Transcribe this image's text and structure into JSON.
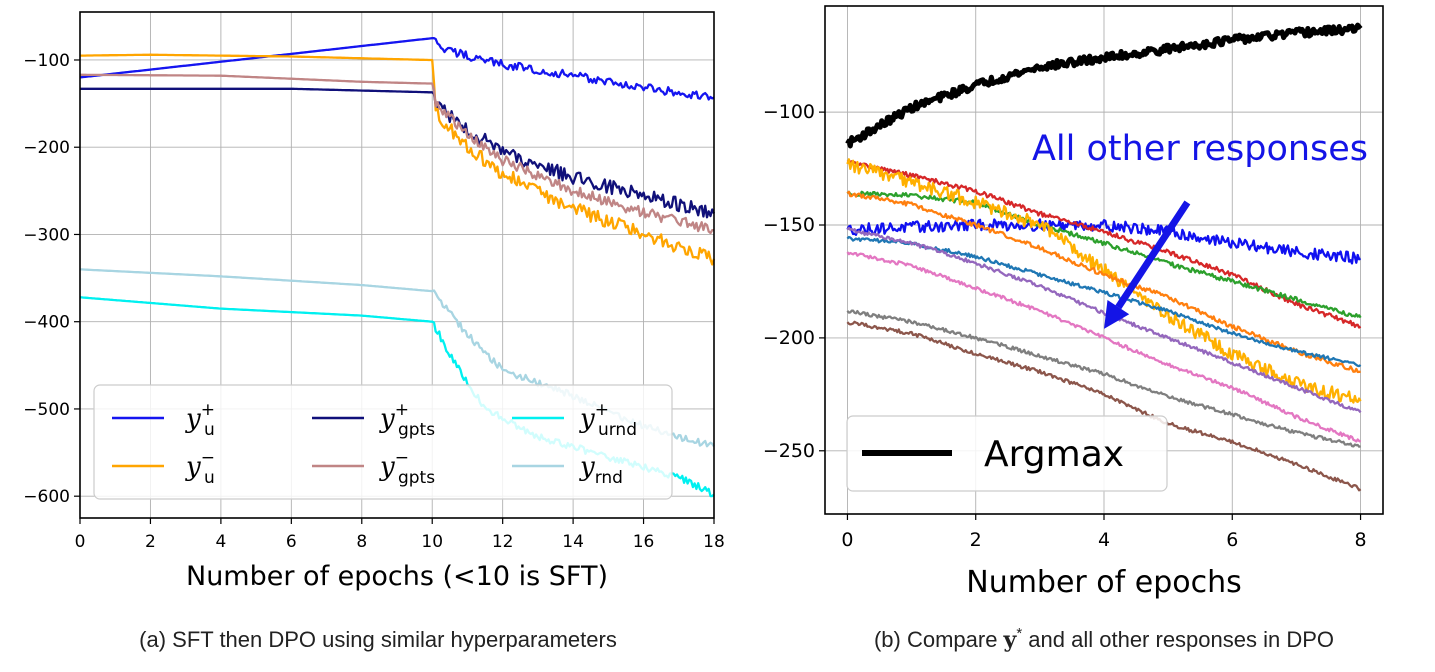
{
  "chart_data": [
    {
      "type": "line",
      "panel": "a",
      "caption": "(a) SFT then DPO using similar hyperparameters",
      "xlabel": "Number of epochs (<10 is SFT)",
      "ylabel": "",
      "xlim": [
        0,
        18
      ],
      "ylim": [
        -625,
        -45
      ],
      "xticks": [
        0,
        2,
        4,
        6,
        8,
        10,
        12,
        14,
        16,
        18
      ],
      "yticks": [
        -100,
        -200,
        -300,
        -400,
        -500,
        -600
      ],
      "grid": true,
      "legend_position": "lower-center",
      "series": [
        {
          "key": "yu_plus",
          "label_main": "y",
          "label_sub": "u",
          "label_sup": "+",
          "color": "#1515f0",
          "points": [
            [
              0,
              -120
            ],
            [
              10,
              -75
            ],
            [
              10.3,
              -88
            ],
            [
              12,
              -105
            ],
            [
              14,
              -118
            ],
            [
              16,
              -132
            ],
            [
              18,
              -143
            ]
          ],
          "noise": 5
        },
        {
          "key": "yu_minus",
          "label_main": "y",
          "label_sub": "u",
          "label_sup": "−",
          "color": "#ffa500",
          "points": [
            [
              0,
              -95
            ],
            [
              2,
              -94
            ],
            [
              6,
              -96
            ],
            [
              9.9,
              -100
            ],
            [
              10,
              -100
            ],
            [
              10.1,
              -160
            ],
            [
              11,
              -200
            ],
            [
              12,
              -230
            ],
            [
              14,
              -270
            ],
            [
              16,
              -300
            ],
            [
              18,
              -328
            ]
          ],
          "noise": 8
        },
        {
          "key": "ygpts_plus",
          "label_main": "y",
          "label_sub": "gpts",
          "label_sup": "+",
          "color": "#10107a",
          "points": [
            [
              0,
              -133
            ],
            [
              6,
              -133
            ],
            [
              9.9,
              -137
            ],
            [
              10,
              -137
            ],
            [
              10.1,
              -150
            ],
            [
              11,
              -180
            ],
            [
              12,
              -205
            ],
            [
              14,
              -235
            ],
            [
              16,
              -255
            ],
            [
              18,
              -276
            ]
          ],
          "noise": 8
        },
        {
          "key": "ygpts_minus",
          "label_main": "y",
          "label_sub": "gpts",
          "label_sup": "−",
          "color": "#c08585",
          "points": [
            [
              0,
              -117
            ],
            [
              4,
              -118
            ],
            [
              8,
              -125
            ],
            [
              9.9,
              -127
            ],
            [
              10,
              -127
            ],
            [
              10.1,
              -150
            ],
            [
              11,
              -185
            ],
            [
              12,
              -215
            ],
            [
              14,
              -250
            ],
            [
              16,
              -275
            ],
            [
              18,
              -295
            ]
          ],
          "noise": 6
        },
        {
          "key": "yurnd_plus",
          "label_main": "y",
          "label_sub": "urnd",
          "label_sup": "+",
          "color": "#00f0f0",
          "points": [
            [
              0,
              -372
            ],
            [
              4,
              -385
            ],
            [
              8,
              -393
            ],
            [
              10,
              -400
            ],
            [
              10.6,
              -445
            ],
            [
              11.5,
              -500
            ],
            [
              13,
              -532
            ],
            [
              15,
              -555
            ],
            [
              17,
              -578
            ],
            [
              18,
              -598
            ]
          ],
          "noise": 4
        },
        {
          "key": "yrnd",
          "label_main": "y",
          "label_sub": "rnd",
          "label_sup": "",
          "color": "#a8d5e2",
          "points": [
            [
              0,
              -340
            ],
            [
              4,
              -348
            ],
            [
              8,
              -358
            ],
            [
              10,
              -365
            ],
            [
              11,
              -415
            ],
            [
              12,
              -455
            ],
            [
              14,
              -485
            ],
            [
              16,
              -520
            ],
            [
              18,
              -543
            ]
          ],
          "noise": 4
        }
      ]
    },
    {
      "type": "line",
      "panel": "b",
      "caption": "(b) Compare y* and all other responses in DPO",
      "caption_parts": {
        "before": "(b) Compare ",
        "symbol": "y",
        "sup": "*",
        "after": " and all other responses in DPO"
      },
      "xlabel": "Number of epochs",
      "ylabel": "",
      "xlim": [
        -0.35,
        8.35
      ],
      "ylim": [
        -278,
        -53
      ],
      "xticks": [
        0,
        2,
        4,
        6,
        8
      ],
      "yticks": [
        -100,
        -150,
        -200,
        -250
      ],
      "grid": true,
      "annotation": {
        "text": "All other responses",
        "arrow_from": [
          5.3,
          -140
        ],
        "arrow_to": [
          4.0,
          -196
        ],
        "color": "#1414e6"
      },
      "legend": [
        {
          "label": "Argmax",
          "color": "#000000"
        }
      ],
      "legend_position": "lower-left",
      "series": [
        {
          "key": "argmax",
          "label": "Argmax",
          "color": "#000000",
          "width": 5,
          "points": [
            [
              0,
              -114
            ],
            [
              1,
              -98
            ],
            [
              2,
              -88
            ],
            [
              3,
              -80
            ],
            [
              4,
              -76
            ],
            [
              5,
              -72
            ],
            [
              6,
              -68
            ],
            [
              7,
              -65
            ],
            [
              8,
              -63
            ]
          ],
          "noise": 1.8
        },
        {
          "key": "other_blue",
          "color": "#1010f0",
          "points": [
            [
              0,
              -152
            ],
            [
              2,
              -150
            ],
            [
              4,
              -150
            ],
            [
              5,
              -153
            ],
            [
              6,
              -158
            ],
            [
              7,
              -162
            ],
            [
              8,
              -165
            ]
          ],
          "noise": 2.5
        },
        {
          "key": "other_red",
          "color": "#d62728",
          "points": [
            [
              0,
              -122
            ],
            [
              1,
              -128
            ],
            [
              2,
              -135
            ],
            [
              3,
              -145
            ],
            [
              4,
              -153
            ],
            [
              5,
              -162
            ],
            [
              6,
              -172
            ],
            [
              7,
              -185
            ],
            [
              8,
              -195
            ]
          ],
          "noise": 1
        },
        {
          "key": "other_green",
          "color": "#2ca02c",
          "points": [
            [
              0,
              -136
            ],
            [
              1,
              -137
            ],
            [
              2,
              -140
            ],
            [
              3,
              -150
            ],
            [
              4,
              -158
            ],
            [
              5,
              -167
            ],
            [
              6,
              -175
            ],
            [
              7,
              -183
            ],
            [
              8,
              -191
            ]
          ],
          "noise": 1
        },
        {
          "key": "other_gold",
          "color": "#ffb000",
          "points": [
            [
              0,
              -123
            ],
            [
              1,
              -131
            ],
            [
              2,
              -140
            ],
            [
              3,
              -150
            ],
            [
              4,
              -170
            ],
            [
              5,
              -190
            ],
            [
              6,
              -207
            ],
            [
              7,
              -220
            ],
            [
              8,
              -228
            ]
          ],
          "noise": 3
        },
        {
          "key": "other_orange",
          "color": "#ff7f0e",
          "points": [
            [
              0,
              -136
            ],
            [
              1,
              -141
            ],
            [
              2,
              -150
            ],
            [
              3,
              -160
            ],
            [
              4,
              -172
            ],
            [
              5,
              -182
            ],
            [
              6,
              -195
            ],
            [
              7,
              -206
            ],
            [
              8,
              -215
            ]
          ],
          "noise": 1
        },
        {
          "key": "other_steel",
          "color": "#1f77b4",
          "points": [
            [
              0,
              -156
            ],
            [
              1,
              -158
            ],
            [
              2,
              -164
            ],
            [
              3,
              -172
            ],
            [
              4,
              -180
            ],
            [
              5,
              -188
            ],
            [
              6,
              -198
            ],
            [
              7,
              -206
            ],
            [
              8,
              -212
            ]
          ],
          "noise": 0.8
        },
        {
          "key": "other_purple",
          "color": "#9467bd",
          "points": [
            [
              0,
              -152
            ],
            [
              1,
              -158
            ],
            [
              2,
              -167
            ],
            [
              3,
              -177
            ],
            [
              4,
              -189
            ],
            [
              5,
              -200
            ],
            [
              6,
              -211
            ],
            [
              7,
              -222
            ],
            [
              8,
              -233
            ]
          ],
          "noise": 0.8
        },
        {
          "key": "other_pink",
          "color": "#e377c2",
          "points": [
            [
              0,
              -162
            ],
            [
              1,
              -168
            ],
            [
              2,
              -178
            ],
            [
              3,
              -188
            ],
            [
              4,
              -200
            ],
            [
              5,
              -212
            ],
            [
              6,
              -222
            ],
            [
              7,
              -235
            ],
            [
              8,
              -246
            ]
          ],
          "noise": 0.8
        },
        {
          "key": "other_gray",
          "color": "#7f7f7f",
          "points": [
            [
              0,
              -188
            ],
            [
              1,
              -193
            ],
            [
              2,
              -200
            ],
            [
              3,
              -208
            ],
            [
              4,
              -216
            ],
            [
              5,
              -226
            ],
            [
              6,
              -234
            ],
            [
              7,
              -242
            ],
            [
              8,
              -248
            ]
          ],
          "noise": 0.8
        },
        {
          "key": "other_brown",
          "color": "#8c564b",
          "points": [
            [
              0,
              -193
            ],
            [
              1,
              -198
            ],
            [
              2,
              -207
            ],
            [
              3,
              -215
            ],
            [
              4,
              -225
            ],
            [
              5,
              -238
            ],
            [
              6,
              -246
            ],
            [
              7,
              -256
            ],
            [
              8,
              -267
            ]
          ],
          "noise": 0.8
        }
      ]
    }
  ]
}
